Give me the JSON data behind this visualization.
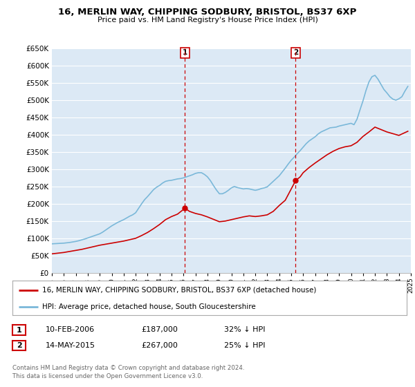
{
  "title1": "16, MERLIN WAY, CHIPPING SODBURY, BRISTOL, BS37 6XP",
  "title2": "Price paid vs. HM Land Registry's House Price Index (HPI)",
  "ylabel_ticks": [
    "£0",
    "£50K",
    "£100K",
    "£150K",
    "£200K",
    "£250K",
    "£300K",
    "£350K",
    "£400K",
    "£450K",
    "£500K",
    "£550K",
    "£600K",
    "£650K"
  ],
  "ylim": [
    0,
    650000
  ],
  "ytick_values": [
    0,
    50000,
    100000,
    150000,
    200000,
    250000,
    300000,
    350000,
    400000,
    450000,
    500000,
    550000,
    600000,
    650000
  ],
  "plot_bg_color": "#dce9f5",
  "grid_color": "#c8d8e8",
  "sale1_x": 2006.12,
  "sale1_value": 187000,
  "sale2_x": 2015.37,
  "sale2_value": 267000,
  "legend_line1": "16, MERLIN WAY, CHIPPING SODBURY, BRISTOL, BS37 6XP (detached house)",
  "legend_line2": "HPI: Average price, detached house, South Gloucestershire",
  "table_row1": [
    "1",
    "10-FEB-2006",
    "£187,000",
    "32% ↓ HPI"
  ],
  "table_row2": [
    "2",
    "14-MAY-2015",
    "£267,000",
    "25% ↓ HPI"
  ],
  "footer1": "Contains HM Land Registry data © Crown copyright and database right 2024.",
  "footer2": "This data is licensed under the Open Government Licence v3.0.",
  "hpi_color": "#7ab8d9",
  "price_color": "#cc0000",
  "vline_color": "#cc0000",
  "hpi_data_x": [
    1995.0,
    1995.25,
    1995.5,
    1995.75,
    1996.0,
    1996.25,
    1996.5,
    1996.75,
    1997.0,
    1997.25,
    1997.5,
    1997.75,
    1998.0,
    1998.25,
    1998.5,
    1998.75,
    1999.0,
    1999.25,
    1999.5,
    1999.75,
    2000.0,
    2000.25,
    2000.5,
    2000.75,
    2001.0,
    2001.25,
    2001.5,
    2001.75,
    2002.0,
    2002.25,
    2002.5,
    2002.75,
    2003.0,
    2003.25,
    2003.5,
    2003.75,
    2004.0,
    2004.25,
    2004.5,
    2004.75,
    2005.0,
    2005.25,
    2005.5,
    2005.75,
    2006.0,
    2006.25,
    2006.5,
    2006.75,
    2007.0,
    2007.25,
    2007.5,
    2007.75,
    2008.0,
    2008.25,
    2008.5,
    2008.75,
    2009.0,
    2009.25,
    2009.5,
    2009.75,
    2010.0,
    2010.25,
    2010.5,
    2010.75,
    2011.0,
    2011.25,
    2011.5,
    2011.75,
    2012.0,
    2012.25,
    2012.5,
    2012.75,
    2013.0,
    2013.25,
    2013.5,
    2013.75,
    2014.0,
    2014.25,
    2014.5,
    2014.75,
    2015.0,
    2015.25,
    2015.5,
    2015.75,
    2016.0,
    2016.25,
    2016.5,
    2016.75,
    2017.0,
    2017.25,
    2017.5,
    2017.75,
    2018.0,
    2018.25,
    2018.5,
    2018.75,
    2019.0,
    2019.25,
    2019.5,
    2019.75,
    2020.0,
    2020.25,
    2020.5,
    2020.75,
    2021.0,
    2021.25,
    2021.5,
    2021.75,
    2022.0,
    2022.25,
    2022.5,
    2022.75,
    2023.0,
    2023.25,
    2023.5,
    2023.75,
    2024.0,
    2024.25,
    2024.5,
    2024.75
  ],
  "hpi_data_y": [
    84000,
    84500,
    85000,
    85500,
    86000,
    87000,
    88000,
    89500,
    91000,
    93000,
    95500,
    98000,
    101000,
    104000,
    107000,
    110000,
    113000,
    118000,
    124000,
    130000,
    136000,
    141000,
    146000,
    150000,
    154000,
    159000,
    164000,
    168000,
    174000,
    187000,
    200000,
    212000,
    221000,
    231000,
    241000,
    248000,
    253000,
    260000,
    265000,
    267000,
    268000,
    270000,
    272000,
    273000,
    275000,
    278000,
    281000,
    284000,
    288000,
    290000,
    290000,
    285000,
    278000,
    267000,
    253000,
    240000,
    229000,
    229000,
    233000,
    239000,
    246000,
    250000,
    247000,
    245000,
    243000,
    244000,
    243000,
    241000,
    239000,
    241000,
    244000,
    246000,
    249000,
    257000,
    265000,
    273000,
    281000,
    292000,
    303000,
    315000,
    326000,
    335000,
    345000,
    354000,
    364000,
    374000,
    382000,
    388000,
    394000,
    402000,
    408000,
    412000,
    416000,
    420000,
    421000,
    422000,
    425000,
    427000,
    429000,
    431000,
    433000,
    429000,
    445000,
    472000,
    498000,
    528000,
    553000,
    568000,
    572000,
    561000,
    546000,
    531000,
    521000,
    510000,
    503000,
    500000,
    504000,
    510000,
    526000,
    540000
  ],
  "price_data_x": [
    1995.0,
    1995.5,
    1996.0,
    1996.5,
    1997.0,
    1997.5,
    1998.0,
    1998.5,
    1999.0,
    1999.5,
    2000.0,
    2000.5,
    2001.0,
    2001.5,
    2002.0,
    2002.5,
    2003.0,
    2003.5,
    2004.0,
    2004.5,
    2005.0,
    2005.5,
    2006.12,
    2006.5,
    2007.0,
    2007.5,
    2008.0,
    2008.5,
    2009.0,
    2009.5,
    2010.0,
    2010.5,
    2011.0,
    2011.5,
    2012.0,
    2012.5,
    2013.0,
    2013.5,
    2014.0,
    2014.5,
    2015.37,
    2015.75,
    2016.0,
    2016.5,
    2017.0,
    2017.5,
    2018.0,
    2018.5,
    2019.0,
    2019.5,
    2020.0,
    2020.5,
    2021.0,
    2021.5,
    2022.0,
    2022.5,
    2023.0,
    2023.5,
    2024.0,
    2024.5,
    2024.75
  ],
  "price_data_y": [
    55000,
    57000,
    59000,
    62000,
    65000,
    68000,
    72000,
    76000,
    80000,
    83000,
    86000,
    89000,
    92000,
    96000,
    100000,
    108000,
    117000,
    128000,
    140000,
    154000,
    163000,
    170000,
    187000,
    178000,
    172000,
    168000,
    162000,
    155000,
    148000,
    150000,
    154000,
    158000,
    162000,
    165000,
    163000,
    165000,
    168000,
    178000,
    195000,
    210000,
    267000,
    278000,
    290000,
    305000,
    318000,
    330000,
    342000,
    352000,
    360000,
    365000,
    368000,
    378000,
    395000,
    408000,
    422000,
    415000,
    408000,
    403000,
    398000,
    406000,
    410000
  ],
  "xlim_start": 1995.0,
  "xlim_end": 2025.0
}
